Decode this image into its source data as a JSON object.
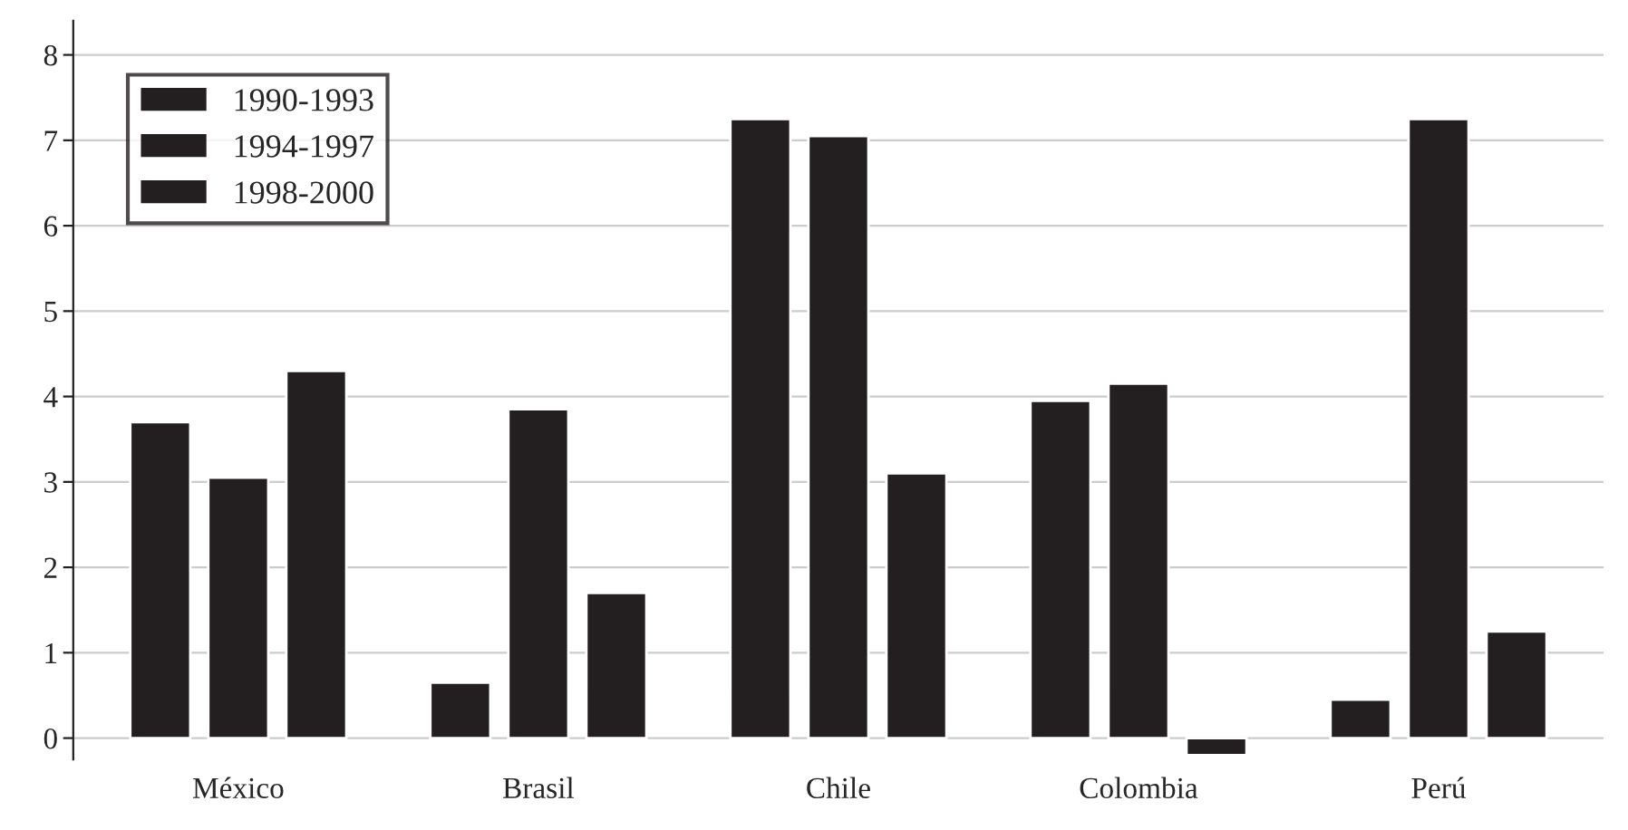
{
  "chart_data": {
    "type": "bar",
    "categories": [
      "México",
      "Brasil",
      "Chile",
      "Colombia",
      "Perú"
    ],
    "series": [
      {
        "name": "1990-1993",
        "color": "#231f20",
        "values": [
          3.7,
          0.65,
          7.25,
          3.95,
          0.45
        ]
      },
      {
        "name": "1994-1997",
        "color": "#231f20",
        "values": [
          3.05,
          3.85,
          7.05,
          4.15,
          7.25
        ]
      },
      {
        "name": "1998-2000",
        "color": "#231f20",
        "values": [
          4.3,
          1.7,
          3.1,
          -0.2,
          1.25
        ]
      }
    ],
    "ylim": [
      -0.25,
      8.4
    ],
    "yticks": [
      0,
      1,
      2,
      3,
      4,
      5,
      6,
      7,
      8
    ],
    "grid": "y",
    "legend": "top left"
  }
}
